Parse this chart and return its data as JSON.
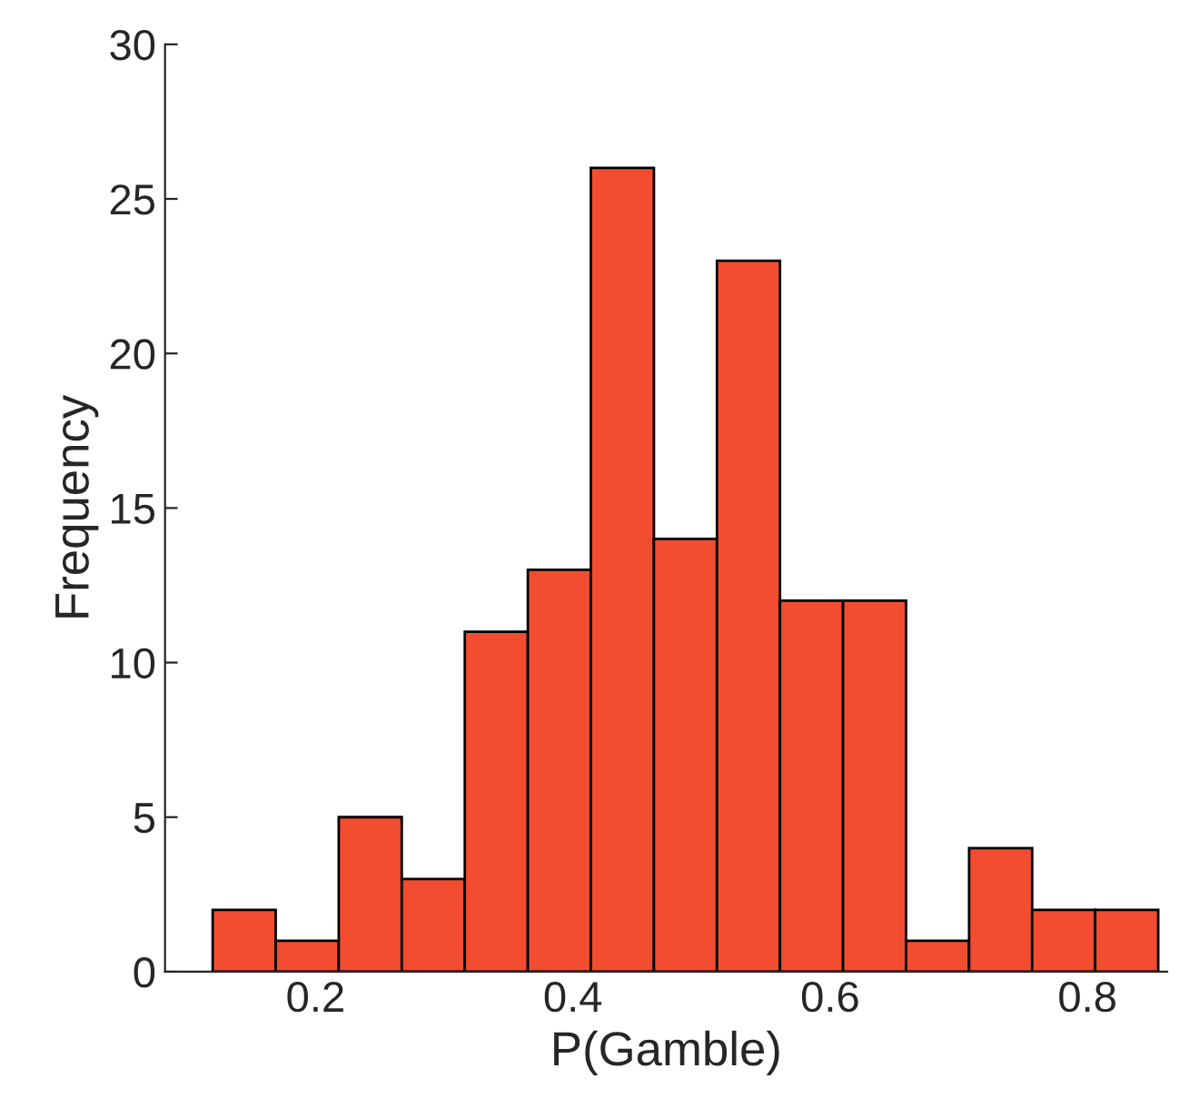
{
  "chart_data": {
    "type": "histogram",
    "xlabel": "P(Gamble)",
    "ylabel": "Frequency",
    "bins": [
      0.12,
      0.169,
      0.218,
      0.267,
      0.316,
      0.365,
      0.414,
      0.463,
      0.512,
      0.561,
      0.61,
      0.659,
      0.708,
      0.757,
      0.806,
      0.855
    ],
    "values": [
      2,
      1,
      5,
      3,
      11,
      13,
      26,
      14,
      23,
      12,
      12,
      1,
      4,
      2,
      2
    ],
    "color": "#f24d31",
    "xlim": [
      0.083,
      0.862
    ],
    "xticks": [
      0.2,
      0.4,
      0.6,
      0.8
    ],
    "ylim": [
      0,
      30
    ],
    "yticks": [
      0,
      5,
      10,
      15,
      20,
      25,
      30
    ],
    "grid": false
  }
}
